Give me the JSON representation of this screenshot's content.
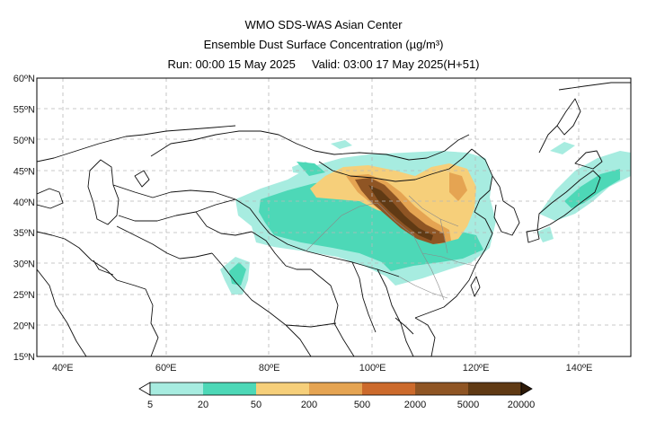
{
  "header": {
    "title": "WMO SDS-WAS Asian Center",
    "subtitle": "Ensemble Dust Surface Concentration (µg/m³)",
    "run_label": "Run: 00:00 15 May 2025",
    "valid_label": "Valid: 03:00 17 May 2025(H+51)"
  },
  "map": {
    "lon_range": [
      35,
      150
    ],
    "lat_range": [
      15,
      60
    ],
    "lat_ticks": [
      "15ºN",
      "20ºN",
      "25ºN",
      "30ºN",
      "35ºN",
      "40ºN",
      "45ºN",
      "50ºN",
      "55ºN",
      "60ºN"
    ],
    "lon_ticks": [
      "40ºE",
      "60ºE",
      "80ºE",
      "100ºE",
      "120ºE",
      "140ºE"
    ]
  },
  "colorbar": {
    "labels": [
      "5",
      "20",
      "50",
      "200",
      "500",
      "2000",
      "5000",
      "20000"
    ],
    "colors": [
      "#a7ece0",
      "#4dd8b7",
      "#f6cf7a",
      "#e5a452",
      "#cc6a2c",
      "#8f5524",
      "#603a14",
      "#2e1a08"
    ]
  }
}
